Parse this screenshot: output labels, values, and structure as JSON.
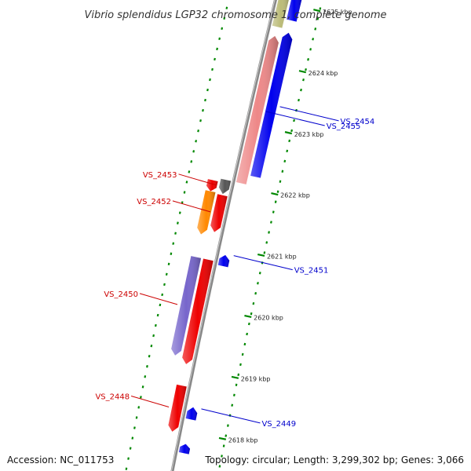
{
  "title": "Vibrio splendidus LGP32 chromosome 1, complete genome",
  "accession": "Accession: NC_011753",
  "topology": "Topology: circular; Length: 3,299,302 bp; Genes: 3,066",
  "colors": {
    "backbone": "#888888",
    "forward_blue": "#0000ee",
    "forward_pink": "#ee8888",
    "forward_khaki": "#bbbb77",
    "reverse_red": "#ee0000",
    "reverse_orange": "#ff8800",
    "reverse_gray": "#555555",
    "reverse_purple": "#7766cc",
    "tick_green": "#008800",
    "label_blue": "#0000cc",
    "label_red": "#cc0000"
  },
  "scale": {
    "ticks": [
      {
        "kbp": 2625,
        "label": "2625 kbp"
      },
      {
        "kbp": 2624,
        "label": "2624 kbp"
      },
      {
        "kbp": 2623,
        "label": "2623 kbp"
      },
      {
        "kbp": 2622,
        "label": "2622 kbp"
      },
      {
        "kbp": 2621,
        "label": "2621 kbp"
      },
      {
        "kbp": 2620,
        "label": "2620 kbp"
      },
      {
        "kbp": 2619,
        "label": "2619 kbp"
      },
      {
        "kbp": 2618,
        "label": "2618 kbp"
      }
    ]
  },
  "genes": [
    {
      "label": "",
      "strand": "+",
      "start_kbp": 2624.6,
      "end_kbp": 2625.2,
      "color": "#bbbb77"
    },
    {
      "label": "",
      "strand": "+",
      "start_kbp": 2624.75,
      "end_kbp": 2625.2,
      "color": "#0000ee"
    },
    {
      "label": "VS_2455",
      "strand": "+",
      "start_kbp": 2622.05,
      "end_kbp": 2624.45,
      "color": "#ee8888"
    },
    {
      "label": "VS_2454",
      "strand": "+",
      "start_kbp": 2622.2,
      "end_kbp": 2624.55,
      "color": "#0000ee"
    },
    {
      "label": "VS_2453",
      "strand": "-",
      "start_kbp": 2621.82,
      "end_kbp": 2622.05,
      "color": "#555555"
    },
    {
      "label": "",
      "strand": "-",
      "start_kbp": 2621.82,
      "end_kbp": 2622.0,
      "color": "#ee0000"
    },
    {
      "label": "VS_2452",
      "strand": "-",
      "start_kbp": 2621.2,
      "end_kbp": 2621.8,
      "color": "#ee0000"
    },
    {
      "label": "",
      "strand": "-",
      "start_kbp": 2621.12,
      "end_kbp": 2621.82,
      "color": "#ff8800"
    },
    {
      "label": "VS_2451",
      "strand": "+",
      "start_kbp": 2620.7,
      "end_kbp": 2620.88,
      "color": "#0000ee"
    },
    {
      "label": "",
      "strand": "-",
      "start_kbp": 2619.05,
      "end_kbp": 2620.75,
      "color": "#ee0000"
    },
    {
      "label": "VS_2450",
      "strand": "-",
      "start_kbp": 2619.15,
      "end_kbp": 2620.75,
      "color": "#7766cc"
    },
    {
      "label": "VS_2448",
      "strand": "-",
      "start_kbp": 2617.95,
      "end_kbp": 2618.7,
      "color": "#ee0000"
    },
    {
      "label": "VS_2449",
      "strand": "+",
      "start_kbp": 2618.2,
      "end_kbp": 2618.4,
      "color": "#0000ee"
    },
    {
      "label": "",
      "strand": "+",
      "start_kbp": 2617.65,
      "end_kbp": 2617.8,
      "color": "#0000ee"
    }
  ]
}
